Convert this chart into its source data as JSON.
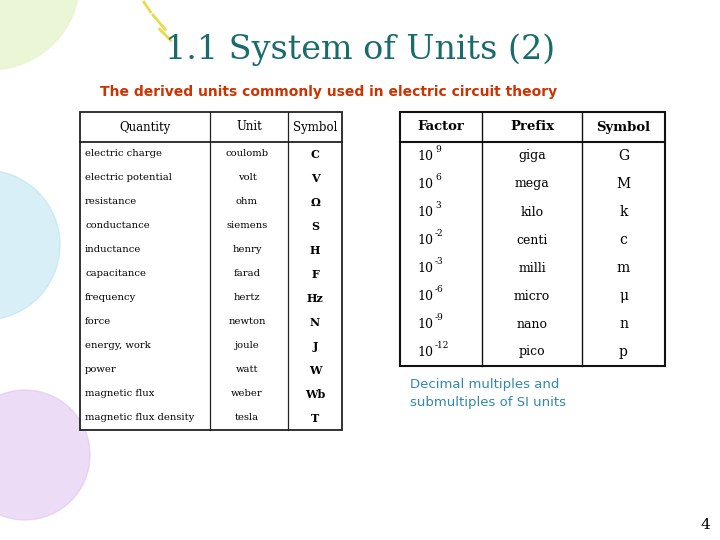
{
  "title": "1.1 System of Units (2)",
  "subtitle": "The derived units commonly used in electric circuit theory",
  "title_color": "#1a6b6b",
  "subtitle_color": "#cc3300",
  "caption_color": "#3388aa",
  "background_color": "#ffffff",
  "page_number": "4",
  "left_table": {
    "headers": [
      "Quantity",
      "Unit",
      "Symbol"
    ],
    "rows": [
      [
        "electric charge",
        "coulomb",
        "C"
      ],
      [
        "electric potential",
        "volt",
        "V"
      ],
      [
        "resistance",
        "ohm",
        "Ω"
      ],
      [
        "conductance",
        "siemens",
        "S"
      ],
      [
        "inductance",
        "henry",
        "H"
      ],
      [
        "capacitance",
        "farad",
        "F"
      ],
      [
        "frequency",
        "hertz",
        "Hz"
      ],
      [
        "force",
        "newton",
        "N"
      ],
      [
        "energy, work",
        "joule",
        "J"
      ],
      [
        "power",
        "watt",
        "W"
      ],
      [
        "magnetic flux",
        "weber",
        "Wb"
      ],
      [
        "magnetic flux density",
        "tesla",
        "T"
      ]
    ]
  },
  "right_table": {
    "headers": [
      "Factor",
      "Prefix",
      "Symbol"
    ],
    "exponents": [
      "9",
      "6",
      "3",
      "-2",
      "-3",
      "-6",
      "-9",
      "-12"
    ],
    "prefixes": [
      "giga",
      "mega",
      "kilo",
      "centi",
      "milli",
      "micro",
      "nano",
      "pico"
    ],
    "symbols": [
      "G",
      "M",
      "k",
      "c",
      "m",
      "μ",
      "n",
      "p"
    ]
  },
  "caption": "Decimal multiples and\nsubmultiples of SI units"
}
